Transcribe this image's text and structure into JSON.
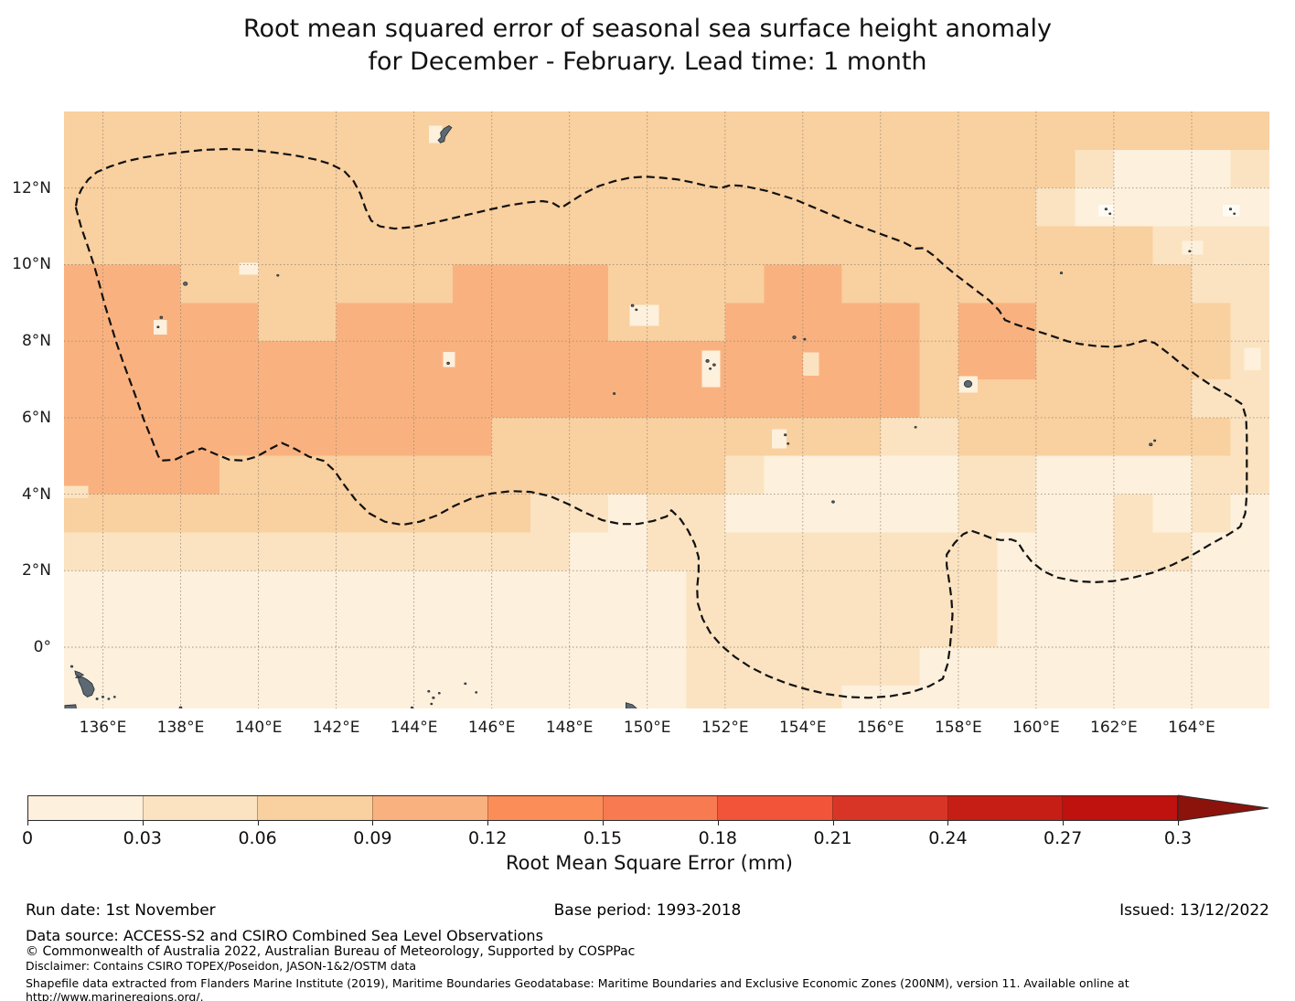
{
  "title": {
    "line1": "Root mean squared error of seasonal sea surface height anomaly",
    "line2": "for December - February. Lead time: 1 month"
  },
  "chart_data": {
    "type": "heatmap",
    "subtype": "filled_contour_map",
    "quantity": "Root mean squared error of seasonal sea surface height anomaly (mm)",
    "lon_range": [
      135,
      166
    ],
    "lat_range": [
      -1.6,
      14
    ],
    "x_tick_lons": [
      136,
      138,
      140,
      142,
      144,
      146,
      148,
      150,
      152,
      154,
      156,
      158,
      160,
      162,
      164
    ],
    "x_tick_labels": [
      "136°E",
      "138°E",
      "140°E",
      "142°E",
      "144°E",
      "146°E",
      "148°E",
      "150°E",
      "152°E",
      "154°E",
      "156°E",
      "158°E",
      "160°E",
      "162°E",
      "164°E"
    ],
    "y_tick_lats": [
      12,
      10,
      8,
      6,
      4,
      2,
      0
    ],
    "y_tick_labels": [
      "12°N",
      "10°N",
      "8°N",
      "6°N",
      "4°N",
      "2°N",
      "0°"
    ],
    "grid_step_deg": 2,
    "value_bins_mm": [
      "0-0.03",
      "0.03-0.06",
      "0.06-0.09",
      "0.09-0.12"
    ],
    "bin_colors": [
      "#fdf0dc",
      "#fbe3c1",
      "#f9d09f",
      "#f9b27f"
    ],
    "white_patch_color": "#fefbf4",
    "land_fill": "#5c6872",
    "land_stroke": "#232c33",
    "gridline_color": "#8a7f72",
    "eez_color": "#111111",
    "rmse_bin_grid": {
      "lon0": 135,
      "lat0": 14,
      "dlon": 1,
      "dlat": 1,
      "rows": [
        "3333333333333333333333333333333",
        "3333333333333333333333333321112",
        "3333333333333333333333333211111",
        "3333333333333333333333333333222",
        "4443333333444433334433333333322",
        "4444433444444433344444344333332",
        "4444444444444444444444344333332",
        "4444444444444444444444333333322",
        "4444444444433333333332233333332",
        "4444333333333333321111122111122",
        "3333333333332212211111122112121",
        "2222222222222112222222221112211",
        "1111111111111111222222221111111",
        "1111111111111111222222221111111",
        "1111111111111111222222111111111",
        "1111111111111111222211111111111"
      ]
    },
    "light_patches": [
      {
        "lon": 139.5,
        "lat": 10.05,
        "w": 0.5,
        "h": 0.32,
        "bin": 1
      },
      {
        "lon": 137.3,
        "lat": 8.55,
        "w": 0.35,
        "h": 0.38,
        "bin": 1
      },
      {
        "lon": 144.75,
        "lat": 7.72,
        "w": 0.3,
        "h": 0.4,
        "bin": 1
      },
      {
        "lon": 149.55,
        "lat": 8.95,
        "w": 0.75,
        "h": 0.55,
        "bin": 1
      },
      {
        "lon": 151.4,
        "lat": 7.75,
        "w": 0.48,
        "h": 0.95,
        "bin": 1
      },
      {
        "lon": 154.0,
        "lat": 7.7,
        "w": 0.42,
        "h": 0.6,
        "bin": 2
      },
      {
        "lon": 153.2,
        "lat": 5.7,
        "w": 0.38,
        "h": 0.5,
        "bin": 1
      },
      {
        "lon": 154.7,
        "lat": 4.0,
        "w": 0.32,
        "h": 0.3,
        "bin": 1
      },
      {
        "lon": 144.38,
        "lat": 13.63,
        "w": 0.35,
        "h": 0.45,
        "bin": 1
      },
      {
        "lon": 135.1,
        "lat": -0.52,
        "w": 0.62,
        "h": 0.55,
        "bin": 1
      },
      {
        "lon": 161.6,
        "lat": 11.56,
        "w": 0.4,
        "h": 0.3,
        "bin": "w"
      },
      {
        "lon": 164.8,
        "lat": 11.56,
        "w": 0.44,
        "h": 0.3,
        "bin": "w"
      },
      {
        "lon": 163.75,
        "lat": 10.62,
        "w": 0.55,
        "h": 0.36,
        "bin": 1
      },
      {
        "lon": 165.35,
        "lat": 7.82,
        "w": 0.42,
        "h": 0.58,
        "bin": 1
      },
      {
        "lon": 135.0,
        "lat": 4.22,
        "w": 0.62,
        "h": 0.32,
        "bin": 2
      },
      {
        "lon": 158.02,
        "lat": 7.08,
        "w": 0.48,
        "h": 0.42,
        "bin": 1
      }
    ],
    "islands_points": [
      [
        138.12,
        9.5,
        2.2
      ],
      [
        137.5,
        8.62,
        1.4
      ],
      [
        137.42,
        8.37,
        1.1
      ],
      [
        140.5,
        9.72,
        1.1
      ],
      [
        144.88,
        7.42,
        1.4
      ],
      [
        149.62,
        8.93,
        1.4
      ],
      [
        149.72,
        8.82,
        1.1
      ],
      [
        151.55,
        7.48,
        1.7
      ],
      [
        151.72,
        7.38,
        1.4
      ],
      [
        151.62,
        7.28,
        1.1
      ],
      [
        153.78,
        8.1,
        1.7
      ],
      [
        154.05,
        8.05,
        1.1
      ],
      [
        149.15,
        6.63,
        1.2
      ],
      [
        156.9,
        5.75,
        1.1
      ],
      [
        153.55,
        5.55,
        1.2
      ],
      [
        153.62,
        5.32,
        1.1
      ],
      [
        154.78,
        3.8,
        1.4
      ],
      [
        162.95,
        5.3,
        1.7
      ],
      [
        163.05,
        5.4,
        1.1
      ],
      [
        161.8,
        11.45,
        1.2
      ],
      [
        161.9,
        11.33,
        1.0
      ],
      [
        165.0,
        11.45,
        1.2
      ],
      [
        165.1,
        11.33,
        1.0
      ],
      [
        163.95,
        10.35,
        1.1
      ],
      [
        160.65,
        9.78,
        1.2
      ],
      [
        135.2,
        -0.5,
        1.2
      ],
      [
        135.85,
        -1.35,
        1.1
      ],
      [
        136.0,
        -1.3,
        1.1
      ],
      [
        136.15,
        -1.35,
        1.0
      ],
      [
        136.3,
        -1.3,
        1.0
      ],
      [
        144.38,
        -1.15,
        1.1
      ],
      [
        144.5,
        -1.32,
        1.2
      ],
      [
        144.65,
        -1.2,
        1.0
      ],
      [
        144.45,
        -1.48,
        1.0
      ],
      [
        145.32,
        -0.95,
        1.1
      ],
      [
        145.6,
        -1.18,
        1.0
      ],
      [
        143.95,
        -1.58,
        1.2
      ],
      [
        138.0,
        -1.58,
        1.4
      ],
      [
        147.2,
        -1.65,
        1.4
      ],
      [
        158.25,
        6.88,
        4.2
      ]
    ],
    "islands_polygons": [
      {
        "name": "guam",
        "points": [
          [
            144.62,
            13.25
          ],
          [
            144.7,
            13.33
          ],
          [
            144.68,
            13.45
          ],
          [
            144.78,
            13.56
          ],
          [
            144.9,
            13.63
          ],
          [
            144.97,
            13.58
          ],
          [
            144.88,
            13.46
          ],
          [
            144.8,
            13.34
          ],
          [
            144.78,
            13.22
          ],
          [
            144.68,
            13.18
          ]
        ]
      },
      {
        "name": "palau",
        "points": [
          [
            135.3,
            -0.8
          ],
          [
            135.48,
            -0.78
          ],
          [
            135.6,
            -0.85
          ],
          [
            135.72,
            -0.95
          ],
          [
            135.78,
            -1.1
          ],
          [
            135.72,
            -1.25
          ],
          [
            135.6,
            -1.3
          ],
          [
            135.5,
            -1.22
          ],
          [
            135.45,
            -1.05
          ],
          [
            135.38,
            -0.9
          ],
          [
            135.35,
            -0.72
          ]
        ]
      },
      {
        "name": "palau-north",
        "points": [
          [
            135.28,
            -0.62
          ],
          [
            135.4,
            -0.66
          ],
          [
            135.5,
            -0.72
          ],
          [
            135.4,
            -0.78
          ],
          [
            135.3,
            -0.72
          ]
        ]
      },
      {
        "name": "west-edge-islet",
        "points": [
          [
            135.02,
            -1.52
          ],
          [
            135.3,
            -1.5
          ],
          [
            135.32,
            -1.62
          ],
          [
            135.02,
            -1.64
          ]
        ]
      },
      {
        "name": "new-ireland",
        "points": [
          [
            149.45,
            -1.45
          ],
          [
            149.62,
            -1.5
          ],
          [
            149.75,
            -1.62
          ],
          [
            149.6,
            -1.68
          ],
          [
            149.45,
            -1.6
          ]
        ]
      }
    ],
    "eez_boundary_lonlat": [
      [
        135.3,
        11.5
      ],
      [
        135.45,
        10.95
      ],
      [
        135.62,
        10.45
      ],
      [
        135.78,
        9.95
      ],
      [
        135.92,
        9.45
      ],
      [
        136.05,
        8.95
      ],
      [
        136.2,
        8.45
      ],
      [
        136.35,
        7.95
      ],
      [
        136.52,
        7.45
      ],
      [
        136.7,
        6.95
      ],
      [
        136.88,
        6.45
      ],
      [
        137.05,
        5.95
      ],
      [
        137.25,
        5.45
      ],
      [
        137.42,
        5.0
      ],
      [
        137.5,
        4.88
      ],
      [
        137.85,
        4.9
      ],
      [
        138.2,
        5.07
      ],
      [
        138.55,
        5.2
      ],
      [
        138.92,
        5.04
      ],
      [
        139.25,
        4.9
      ],
      [
        139.6,
        4.88
      ],
      [
        139.95,
        4.98
      ],
      [
        140.3,
        5.18
      ],
      [
        140.6,
        5.34
      ],
      [
        140.95,
        5.18
      ],
      [
        141.3,
        4.98
      ],
      [
        141.68,
        4.87
      ],
      [
        141.95,
        4.62
      ],
      [
        142.2,
        4.25
      ],
      [
        142.5,
        3.85
      ],
      [
        142.85,
        3.5
      ],
      [
        143.25,
        3.28
      ],
      [
        143.7,
        3.2
      ],
      [
        144.15,
        3.28
      ],
      [
        144.6,
        3.45
      ],
      [
        145.05,
        3.7
      ],
      [
        145.5,
        3.9
      ],
      [
        146.0,
        4.02
      ],
      [
        146.5,
        4.08
      ],
      [
        147.0,
        4.06
      ],
      [
        147.5,
        3.95
      ],
      [
        147.95,
        3.75
      ],
      [
        148.4,
        3.52
      ],
      [
        148.85,
        3.32
      ],
      [
        149.3,
        3.22
      ],
      [
        149.75,
        3.22
      ],
      [
        150.15,
        3.3
      ],
      [
        150.5,
        3.42
      ],
      [
        150.62,
        3.58
      ],
      [
        150.85,
        3.35
      ],
      [
        151.05,
        3.05
      ],
      [
        151.22,
        2.7
      ],
      [
        151.32,
        2.35
      ],
      [
        151.32,
        1.95
      ],
      [
        151.28,
        1.55
      ],
      [
        151.3,
        1.15
      ],
      [
        151.42,
        0.75
      ],
      [
        151.62,
        0.38
      ],
      [
        151.9,
        0.05
      ],
      [
        152.25,
        -0.25
      ],
      [
        152.65,
        -0.52
      ],
      [
        153.1,
        -0.75
      ],
      [
        153.6,
        -0.95
      ],
      [
        154.1,
        -1.1
      ],
      [
        154.6,
        -1.22
      ],
      [
        155.15,
        -1.3
      ],
      [
        155.7,
        -1.32
      ],
      [
        156.25,
        -1.28
      ],
      [
        156.78,
        -1.18
      ],
      [
        157.25,
        -1.02
      ],
      [
        157.6,
        -0.82
      ],
      [
        157.72,
        -0.45
      ],
      [
        157.78,
        -0.05
      ],
      [
        157.82,
        0.4
      ],
      [
        157.85,
        0.85
      ],
      [
        157.82,
        1.3
      ],
      [
        157.76,
        1.75
      ],
      [
        157.7,
        2.15
      ],
      [
        157.7,
        2.42
      ],
      [
        157.9,
        2.72
      ],
      [
        158.12,
        2.95
      ],
      [
        158.32,
        3.05
      ],
      [
        158.6,
        2.95
      ],
      [
        158.85,
        2.85
      ],
      [
        159.1,
        2.8
      ],
      [
        159.35,
        2.82
      ],
      [
        159.52,
        2.76
      ],
      [
        159.68,
        2.5
      ],
      [
        159.9,
        2.22
      ],
      [
        160.2,
        1.98
      ],
      [
        160.55,
        1.82
      ],
      [
        161.0,
        1.73
      ],
      [
        161.5,
        1.7
      ],
      [
        162.0,
        1.73
      ],
      [
        162.5,
        1.82
      ],
      [
        163.0,
        1.95
      ],
      [
        163.5,
        2.15
      ],
      [
        164.0,
        2.4
      ],
      [
        164.5,
        2.7
      ],
      [
        164.95,
        2.95
      ],
      [
        165.25,
        3.15
      ],
      [
        165.38,
        3.5
      ],
      [
        165.42,
        4.0
      ],
      [
        165.42,
        4.5
      ],
      [
        165.42,
        5.0
      ],
      [
        165.42,
        5.5
      ],
      [
        165.4,
        6.0
      ],
      [
        165.3,
        6.35
      ],
      [
        165.0,
        6.55
      ],
      [
        164.6,
        6.78
      ],
      [
        164.2,
        7.05
      ],
      [
        163.8,
        7.35
      ],
      [
        163.4,
        7.68
      ],
      [
        163.05,
        7.95
      ],
      [
        162.8,
        8.02
      ],
      [
        162.4,
        7.9
      ],
      [
        162.0,
        7.85
      ],
      [
        161.55,
        7.87
      ],
      [
        161.1,
        7.93
      ],
      [
        160.8,
        8.0
      ],
      [
        160.3,
        8.17
      ],
      [
        159.9,
        8.3
      ],
      [
        159.5,
        8.43
      ],
      [
        159.2,
        8.55
      ],
      [
        159.05,
        8.8
      ],
      [
        158.8,
        9.06
      ],
      [
        158.4,
        9.37
      ],
      [
        158.0,
        9.68
      ],
      [
        157.65,
        9.97
      ],
      [
        157.35,
        10.25
      ],
      [
        157.1,
        10.43
      ],
      [
        156.9,
        10.42
      ],
      [
        156.6,
        10.58
      ],
      [
        156.0,
        10.8
      ],
      [
        155.2,
        11.1
      ],
      [
        154.5,
        11.4
      ],
      [
        153.8,
        11.7
      ],
      [
        153.1,
        11.92
      ],
      [
        152.5,
        12.05
      ],
      [
        152.15,
        12.08
      ],
      [
        151.9,
        12.0
      ],
      [
        151.55,
        12.05
      ],
      [
        151.15,
        12.15
      ],
      [
        150.75,
        12.23
      ],
      [
        150.35,
        12.27
      ],
      [
        149.95,
        12.3
      ],
      [
        149.55,
        12.27
      ],
      [
        149.15,
        12.18
      ],
      [
        148.75,
        12.05
      ],
      [
        148.35,
        11.85
      ],
      [
        148.0,
        11.62
      ],
      [
        147.78,
        11.48
      ],
      [
        147.55,
        11.62
      ],
      [
        147.3,
        11.66
      ],
      [
        146.9,
        11.62
      ],
      [
        146.45,
        11.55
      ],
      [
        145.95,
        11.44
      ],
      [
        145.45,
        11.32
      ],
      [
        144.95,
        11.2
      ],
      [
        144.45,
        11.08
      ],
      [
        143.95,
        10.98
      ],
      [
        143.5,
        10.94
      ],
      [
        143.12,
        11.0
      ],
      [
        142.9,
        11.15
      ],
      [
        142.76,
        11.45
      ],
      [
        142.62,
        11.85
      ],
      [
        142.45,
        12.18
      ],
      [
        142.2,
        12.45
      ],
      [
        141.85,
        12.63
      ],
      [
        141.45,
        12.75
      ],
      [
        140.95,
        12.85
      ],
      [
        140.4,
        12.93
      ],
      [
        139.8,
        13.0
      ],
      [
        139.2,
        13.02
      ],
      [
        138.6,
        13.0
      ],
      [
        138.05,
        12.94
      ],
      [
        137.55,
        12.88
      ],
      [
        137.05,
        12.8
      ],
      [
        136.6,
        12.7
      ],
      [
        136.2,
        12.57
      ],
      [
        135.85,
        12.42
      ],
      [
        135.62,
        12.22
      ],
      [
        135.45,
        11.97
      ],
      [
        135.34,
        11.73
      ],
      [
        135.3,
        11.5
      ]
    ]
  },
  "colorbar": {
    "label": "Root Mean Square Error (mm)",
    "tick_labels": [
      "0",
      "0.03",
      "0.06",
      "0.09",
      "0.12",
      "0.15",
      "0.18",
      "0.21",
      "0.24",
      "0.27",
      "0.3"
    ],
    "segment_colors": [
      "#fdf0dc",
      "#fbe3c1",
      "#f9d09f",
      "#f9b27f",
      "#fb8e58",
      "#f87a51",
      "#f25439",
      "#d93526",
      "#c61e15",
      "#bf110e"
    ],
    "arrow_color": "#8b130c"
  },
  "footer": {
    "run_date": "Run date: 1st November",
    "base_period": "Base period: 1993-2018",
    "issued": "Issued: 13/12/2022",
    "data_source": "Data source: ACCESS-S2 and CSIRO Combined Sea Level Observations",
    "copyright": "© Commonwealth of Australia 2022, Australian Bureau of Meteorology, Supported by COSPPac",
    "disclaimer": "Disclaimer: Contains CSIRO TOPEX/Poseidon, JASON-1&2/OSTM data",
    "shapefile_note": "Shapefile data extracted from Flanders Marine Institute (2019), Maritime Boundaries Geodatabase: Maritime Boundaries and Exclusive Economic Zones (200NM), version 11. Available online at http://www.marineregions.org/."
  }
}
